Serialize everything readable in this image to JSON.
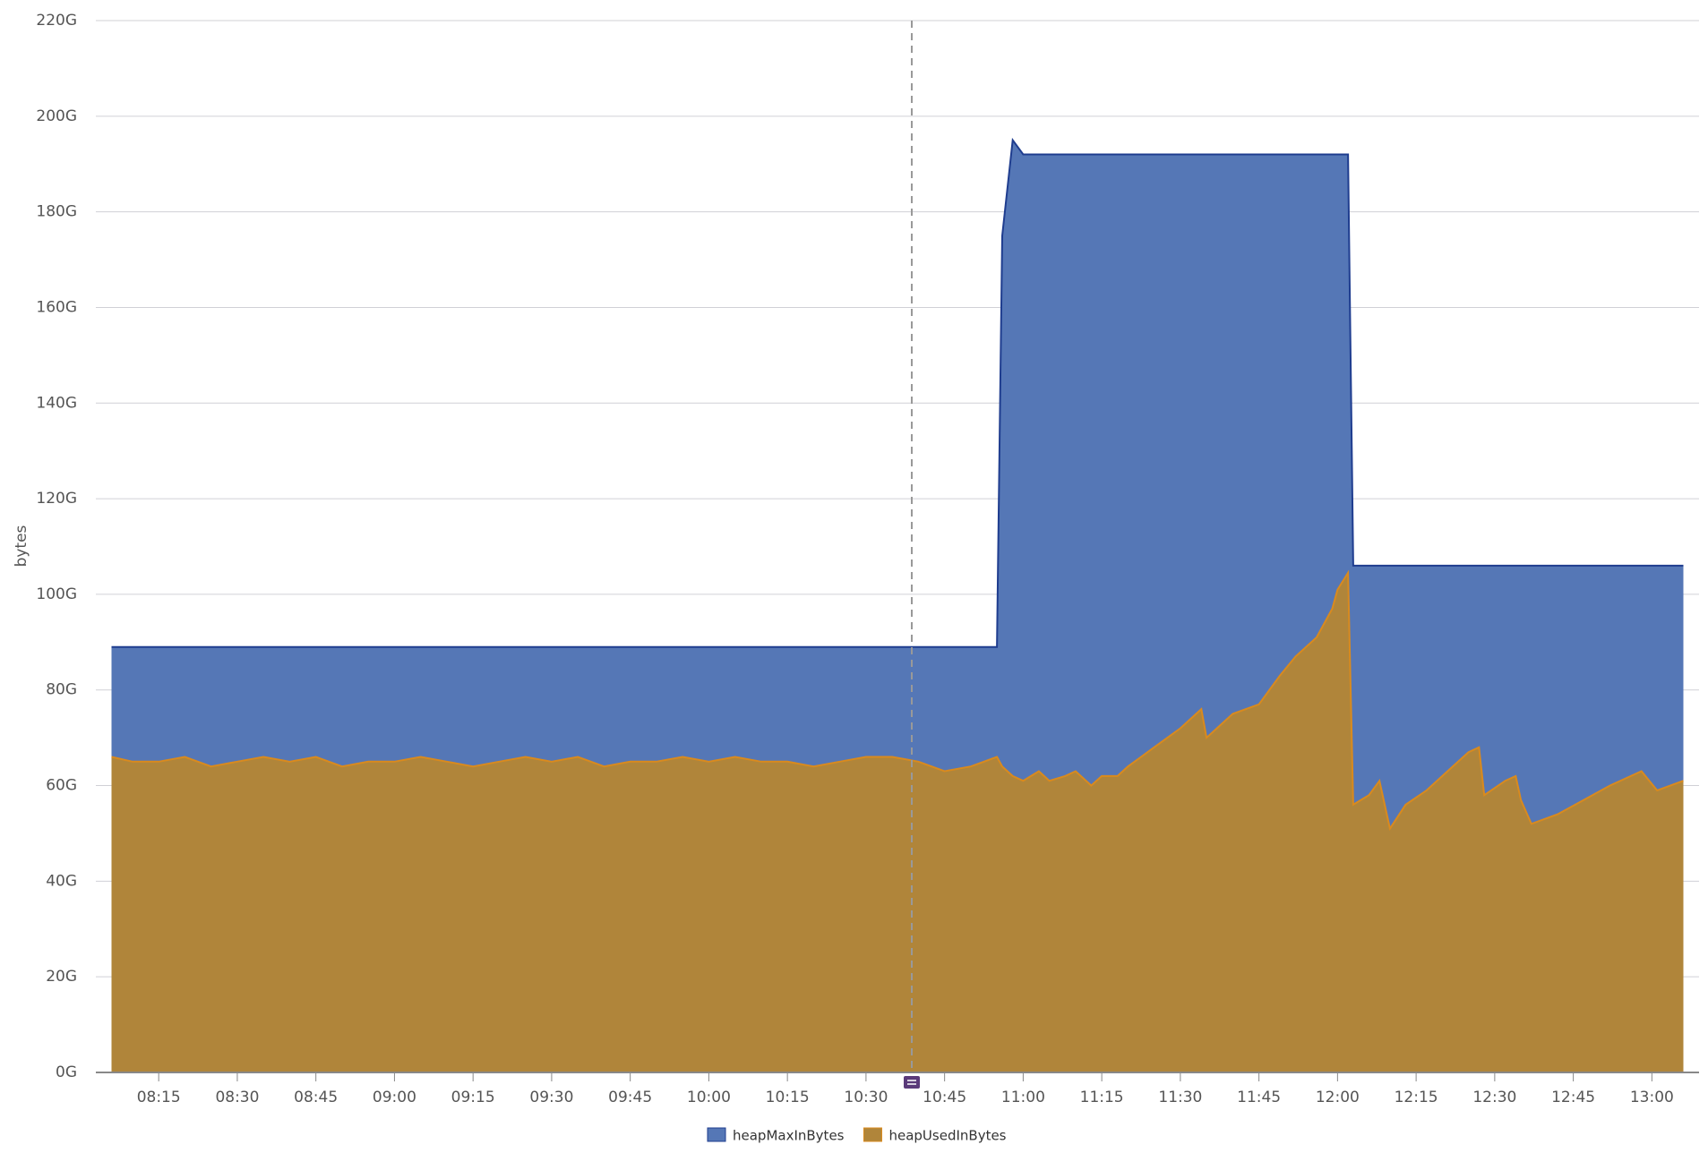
{
  "chart_data": {
    "type": "area",
    "y_label": "bytes",
    "x": [
      "08:06",
      "08:10",
      "08:15",
      "08:20",
      "08:25",
      "08:30",
      "08:35",
      "08:40",
      "08:45",
      "08:50",
      "08:55",
      "09:00",
      "09:05",
      "09:10",
      "09:15",
      "09:20",
      "09:25",
      "09:30",
      "09:35",
      "09:40",
      "09:45",
      "09:50",
      "09:55",
      "10:00",
      "10:05",
      "10:10",
      "10:15",
      "10:20",
      "10:25",
      "10:30",
      "10:35",
      "10:40",
      "10:45",
      "10:50",
      "10:55",
      "10:56",
      "10:58",
      "11:00",
      "11:03",
      "11:05",
      "11:08",
      "11:10",
      "11:13",
      "11:15",
      "11:18",
      "11:20",
      "11:25",
      "11:30",
      "11:34",
      "11:35",
      "11:40",
      "11:45",
      "11:49",
      "11:52",
      "11:56",
      "11:59",
      "12:00",
      "12:02",
      "12:03",
      "12:06",
      "12:08",
      "12:10",
      "12:13",
      "12:17",
      "12:21",
      "12:25",
      "12:27",
      "12:28",
      "12:32",
      "12:34",
      "12:35",
      "12:37",
      "12:42",
      "12:47",
      "12:52",
      "12:58",
      "13:01",
      "13:06"
    ],
    "series": [
      {
        "name": "heapMaxInBytes",
        "color": "#5577b6",
        "line_color": "#1f3d8f",
        "values": [
          89,
          89,
          89,
          89,
          89,
          89,
          89,
          89,
          89,
          89,
          89,
          89,
          89,
          89,
          89,
          89,
          89,
          89,
          89,
          89,
          89,
          89,
          89,
          89,
          89,
          89,
          89,
          89,
          89,
          89,
          89,
          89,
          89,
          89,
          89,
          175,
          195,
          192,
          192,
          192,
          192,
          192,
          192,
          192,
          192,
          192,
          192,
          192,
          192,
          192,
          192,
          192,
          192,
          192,
          192,
          192,
          192,
          192,
          106,
          106,
          106,
          106,
          106,
          106,
          106,
          106,
          106,
          106,
          106,
          106,
          106,
          106,
          106,
          106,
          106,
          106,
          106,
          106
        ]
      },
      {
        "name": "heapUsedInBytes",
        "color": "#b0853a",
        "line_color": "#d98a1e",
        "values": [
          66,
          65,
          65,
          66,
          64,
          65,
          66,
          65,
          66,
          64,
          65,
          65,
          66,
          65,
          64,
          65,
          66,
          65,
          66,
          64,
          65,
          65,
          66,
          65,
          66,
          65,
          65,
          64,
          65,
          66,
          66,
          65,
          63,
          64,
          66,
          64,
          62,
          61,
          63,
          61,
          62,
          63,
          60,
          62,
          62,
          64,
          68,
          72,
          76,
          70,
          75,
          77,
          83,
          87,
          91,
          97,
          101,
          104.5,
          56,
          58,
          61,
          51,
          56,
          59,
          63,
          67,
          68,
          58,
          61,
          62,
          57,
          52,
          54,
          57,
          60,
          63,
          59,
          61
        ]
      }
    ],
    "xlim": [
      "08:03",
      "13:09"
    ],
    "xticks": [
      "08:15",
      "08:30",
      "08:45",
      "09:00",
      "09:15",
      "09:30",
      "09:45",
      "10:00",
      "10:15",
      "10:30",
      "10:45",
      "11:00",
      "11:15",
      "11:30",
      "11:45",
      "12:00",
      "12:15",
      "12:30",
      "12:45",
      "13:00"
    ],
    "ylim": [
      0,
      220
    ],
    "yticks": [
      {
        "value": 0,
        "label": "0G"
      },
      {
        "value": 20,
        "label": "20G"
      },
      {
        "value": 40,
        "label": "40G"
      },
      {
        "value": 60,
        "label": "60G"
      },
      {
        "value": 80,
        "label": "80G"
      },
      {
        "value": 100,
        "label": "100G"
      },
      {
        "value": 120,
        "label": "120G"
      },
      {
        "value": 140,
        "label": "140G"
      },
      {
        "value": 160,
        "label": "160G"
      },
      {
        "value": 180,
        "label": "180G"
      },
      {
        "value": 200,
        "label": "200G"
      },
      {
        "value": 220,
        "label": "220G"
      }
    ],
    "grid": true
  }
}
